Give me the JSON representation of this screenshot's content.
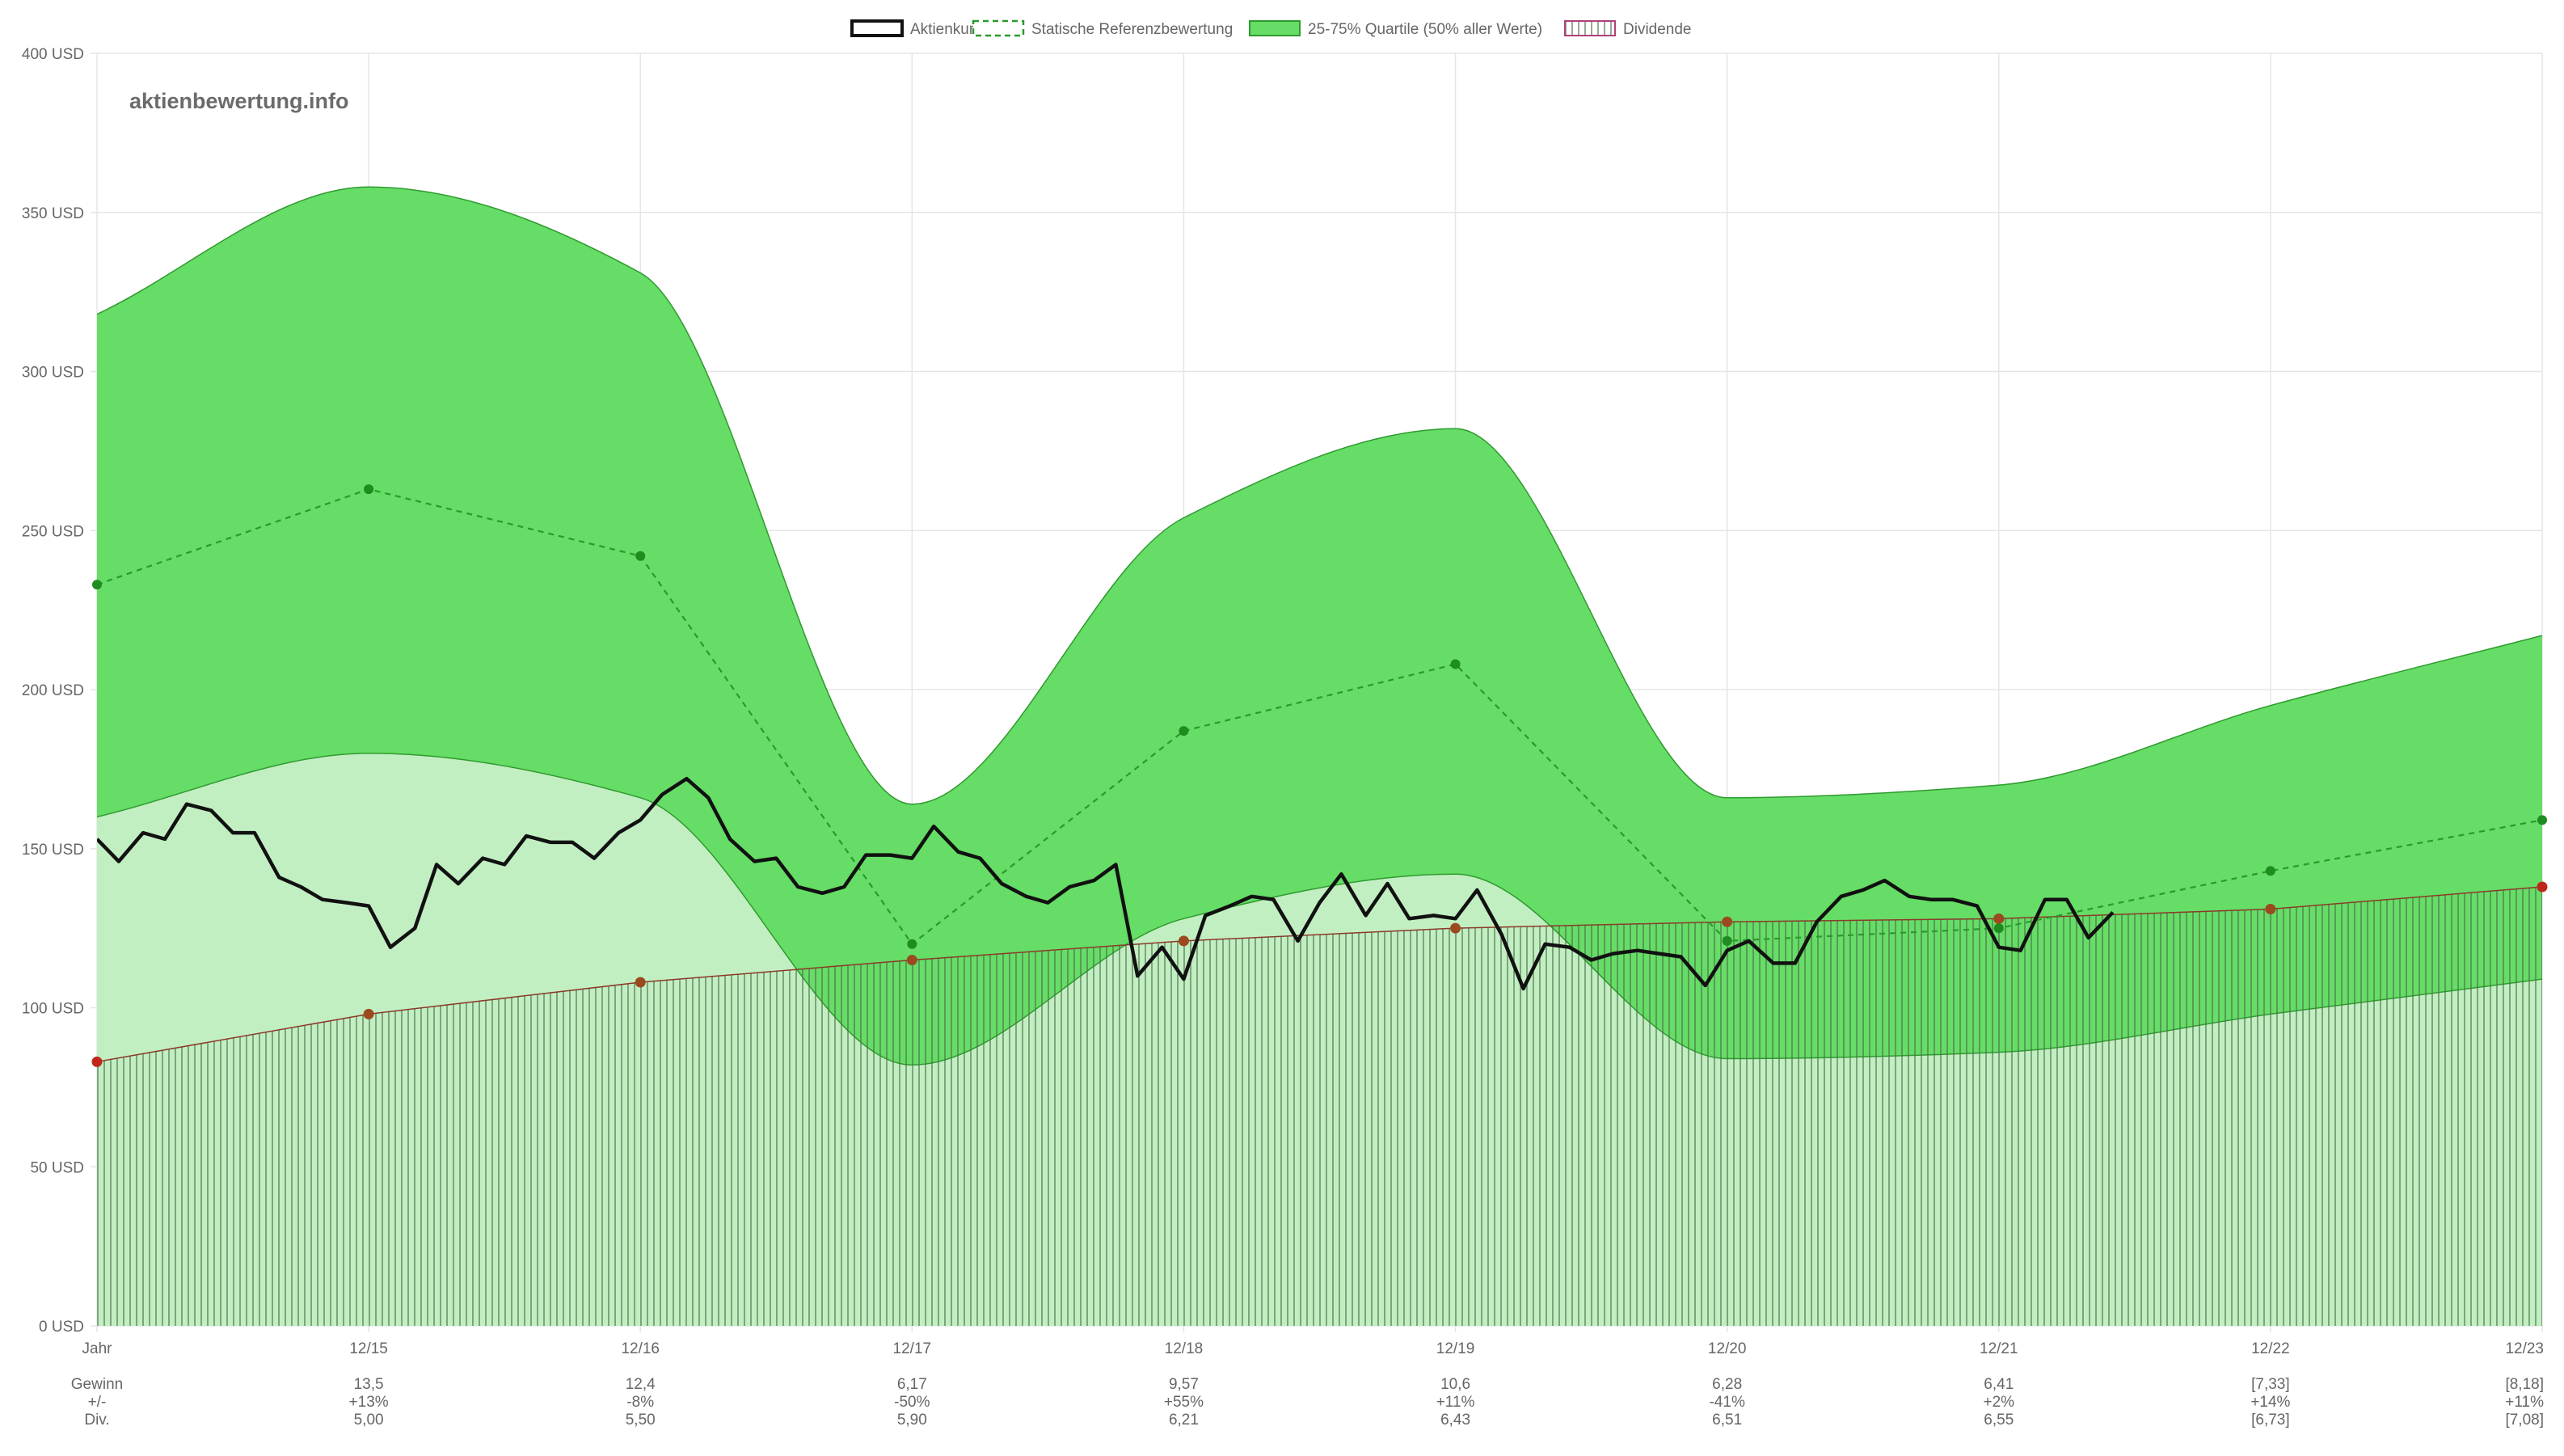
{
  "chart_data": {
    "type": "line",
    "watermark": "aktienbewertung.info",
    "ylim": [
      0,
      400
    ],
    "y_ticks": [
      0,
      50,
      100,
      150,
      200,
      250,
      300,
      350,
      400
    ],
    "y_unit": "USD",
    "x_start": 2014.0,
    "x_end": 2023.0,
    "x_labels": [
      "Jahr",
      "12/15",
      "12/16",
      "12/17",
      "12/18",
      "12/19",
      "12/20",
      "12/21",
      "12/22",
      "12/23"
    ],
    "legend": {
      "position": "top-center",
      "items": [
        {
          "name": "Aktienkurs",
          "style": "solid-black"
        },
        {
          "name": "Statische Referenzbewertung",
          "style": "dashed-green"
        },
        {
          "name": "25-75% Quartile (50% aller Werte)",
          "style": "green-fill"
        },
        {
          "name": "Dividende",
          "style": "hatched-red"
        }
      ]
    },
    "years": [
      2014,
      2015,
      2016,
      2017,
      2018,
      2019,
      2020,
      2021,
      2022,
      2023
    ],
    "quartile_upper": [
      318,
      358,
      331,
      164,
      254,
      282,
      166,
      170,
      195,
      217
    ],
    "quartile_lower": [
      160,
      180,
      166,
      82,
      128,
      142,
      84,
      86,
      98,
      109
    ],
    "reference_valuation": [
      233,
      263,
      242,
      120,
      187,
      208,
      121,
      125,
      143,
      159
    ],
    "dividend_level": [
      83,
      98,
      108,
      115,
      121,
      125,
      127,
      128,
      131,
      138
    ],
    "stock_price": {
      "x": [
        2014.0,
        2014.08,
        2014.17,
        2014.25,
        2014.33,
        2014.42,
        2014.5,
        2014.58,
        2014.67,
        2014.75,
        2014.83,
        2014.92,
        2015.0,
        2015.08,
        2015.17,
        2015.25,
        2015.33,
        2015.42,
        2015.5,
        2015.58,
        2015.67,
        2015.75,
        2015.83,
        2015.92,
        2016.0,
        2016.08,
        2016.17,
        2016.25,
        2016.33,
        2016.42,
        2016.5,
        2016.58,
        2016.67,
        2016.75,
        2016.83,
        2016.92,
        2017.0,
        2017.08,
        2017.17,
        2017.25,
        2017.33,
        2017.42,
        2017.5,
        2017.58,
        2017.67,
        2017.75,
        2017.83,
        2017.92,
        2018.0,
        2018.08,
        2018.17,
        2018.25,
        2018.33,
        2018.42,
        2018.5,
        2018.58,
        2018.67,
        2018.75,
        2018.83,
        2018.92,
        2019.0,
        2019.08,
        2019.17,
        2019.25,
        2019.33,
        2019.42,
        2019.5,
        2019.58,
        2019.67,
        2019.75,
        2019.83,
        2019.92,
        2020.0,
        2020.08,
        2020.17,
        2020.25,
        2020.33,
        2020.42,
        2020.5,
        2020.58,
        2020.67,
        2020.75,
        2020.83,
        2020.92,
        2021.0,
        2021.08,
        2021.17,
        2021.25,
        2021.33,
        2021.42
      ],
      "y": [
        153,
        146,
        155,
        153,
        164,
        162,
        155,
        155,
        141,
        138,
        134,
        133,
        132,
        119,
        125,
        145,
        139,
        147,
        145,
        154,
        152,
        152,
        147,
        155,
        159,
        167,
        172,
        166,
        153,
        146,
        147,
        138,
        136,
        138,
        148,
        148,
        147,
        157,
        149,
        147,
        139,
        135,
        133,
        138,
        140,
        145,
        110,
        119,
        109,
        129,
        132,
        135,
        134,
        121,
        133,
        142,
        129,
        139,
        128,
        129,
        128,
        137,
        123,
        106,
        120,
        119,
        115,
        117,
        118,
        117,
        116,
        107,
        118,
        121,
        114,
        114,
        127,
        135,
        137,
        140,
        135,
        134,
        134,
        132,
        119,
        118,
        134,
        134,
        122,
        130
      ]
    },
    "table": {
      "rows": [
        {
          "label": "Gewinn",
          "values": [
            "13,5",
            "12,4",
            "6,17",
            "9,57",
            "10,6",
            "6,28",
            "6,41",
            "[7,33]",
            "[8,18]"
          ]
        },
        {
          "label": "+/-",
          "values": [
            "+13%",
            "-8%",
            "-50%",
            "+55%",
            "+11%",
            "-41%",
            "+2%",
            "+14%",
            "+11%"
          ]
        },
        {
          "label": "Div.",
          "values": [
            "5,00",
            "5,50",
            "5,90",
            "6,21",
            "6,43",
            "6,51",
            "6,55",
            "[6,73]",
            "[7,08]"
          ]
        }
      ]
    },
    "colors": {
      "quartile_fill": "#66dd66",
      "quartile_stroke": "#2f9a2f",
      "lower_fill": "#c2efc2",
      "reference": "#2a9a2a",
      "reference_point": "#1e8c1e",
      "dividend_line": "#8b3a2a",
      "dividend_hatch": "#4b6f4b",
      "dividend_point": "#c0271b",
      "stock": "#111111",
      "grid": "#e5e5e5",
      "axis_text": "#666666"
    }
  }
}
